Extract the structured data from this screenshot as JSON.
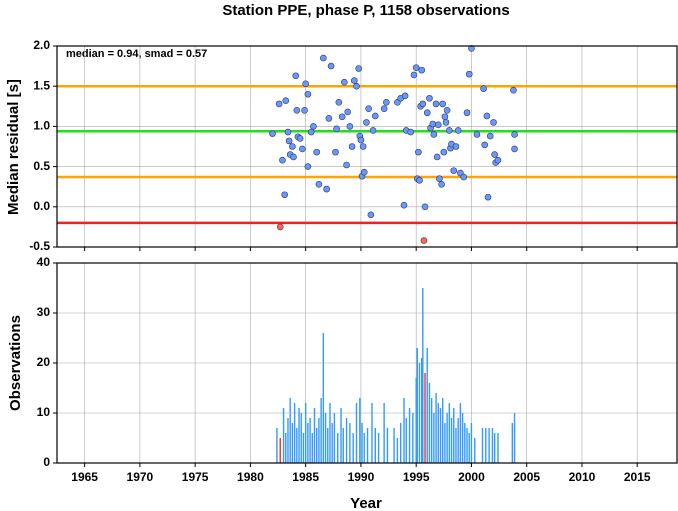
{
  "chart_data": [
    {
      "type": "scatter",
      "title": "Station PPE, phase P, 1158 observations",
      "ylabel": "Median residual [s]",
      "annotation": "median = 0.94, smad = 0.57",
      "xlim": [
        1962.5,
        2018.6
      ],
      "xticks": [
        1965,
        1970,
        1975,
        1980,
        1985,
        1990,
        1995,
        2000,
        2005,
        2010,
        2015
      ],
      "xtick_labels": false,
      "ylim": [
        -0.5,
        2.0
      ],
      "yticks": [
        -0.5,
        {
          "value": 0,
          "label": "0.0"
        },
        0.5,
        {
          "value": 1,
          "label": "1.0"
        },
        1.5,
        {
          "value": 2,
          "label": "2.0"
        }
      ],
      "grid": true,
      "hlines": [
        {
          "value": 1.5,
          "color": "#ffa500"
        },
        {
          "value": 0.94,
          "color": "#22dd22"
        },
        {
          "value": 0.37,
          "color": "#ffa500"
        },
        {
          "value": -0.2,
          "color": "#ee2222"
        }
      ],
      "series": [
        {
          "color": "#6699ff",
          "x": [
            1982.0,
            1982.6,
            1982.9,
            1983.1,
            1983.2,
            1983.4,
            1983.5,
            1983.6,
            1983.8,
            1983.9,
            1984.1,
            1984.2,
            1984.3,
            1984.5,
            1984.7,
            1984.9,
            1985.0,
            1985.2,
            1985.2,
            1985.5,
            1985.7,
            1986.0,
            1986.2,
            1986.6,
            1986.9,
            1987.1,
            1987.3,
            1987.7,
            1987.8,
            1988.0,
            1988.3,
            1988.5,
            1988.7,
            1988.8,
            1989.0,
            1989.2,
            1989.4,
            1989.6,
            1989.8,
            1989.9,
            1990.0,
            1990.1,
            1990.2,
            1990.3,
            1990.5,
            1990.7,
            1990.9,
            1991.1,
            1991.3,
            1992.1,
            1992.3,
            1993.3,
            1993.6,
            1993.9,
            1994.0,
            1994.1,
            1994.5,
            1994.8,
            1995.0,
            1995.1,
            1995.2,
            1995.3,
            1995.4,
            1995.5,
            1995.6,
            1995.8,
            1996.0,
            1996.2,
            1996.3,
            1996.5,
            1996.6,
            1996.8,
            1996.9,
            1997.0,
            1997.1,
            1997.3,
            1997.4,
            1997.5,
            1997.6,
            1997.7,
            1997.8,
            1998.0,
            1998.1,
            1998.2,
            1998.4,
            1998.6,
            1998.8,
            1999.0,
            1999.3,
            1999.6,
            1999.8,
            2000.0,
            2000.5,
            2001.1,
            2001.2,
            2001.4,
            2001.5,
            2001.7,
            2002.0,
            2002.1,
            2002.2,
            2002.4,
            2003.8,
            2003.9,
            2003.9
          ],
          "values": [
            0.91,
            1.28,
            0.58,
            0.15,
            1.32,
            0.93,
            0.82,
            0.65,
            0.75,
            0.62,
            1.63,
            1.2,
            0.87,
            0.85,
            0.72,
            1.2,
            1.53,
            1.4,
            0.5,
            0.93,
            1.0,
            0.68,
            0.28,
            1.85,
            0.22,
            1.1,
            1.75,
            0.68,
            0.97,
            1.3,
            1.12,
            1.55,
            0.52,
            1.18,
            1.0,
            0.75,
            1.57,
            1.5,
            1.72,
            0.88,
            0.83,
            0.38,
            0.75,
            0.43,
            1.05,
            1.22,
            -0.1,
            0.95,
            1.13,
            1.22,
            1.3,
            1.3,
            1.35,
            0.02,
            1.38,
            0.95,
            0.93,
            1.64,
            1.73,
            0.35,
            0.68,
            0.33,
            1.25,
            1.7,
            1.28,
            0.0,
            1.17,
            1.35,
            0.98,
            1.03,
            0.9,
            1.28,
            0.62,
            1.02,
            0.35,
            0.28,
            1.28,
            0.68,
            1.12,
            1.05,
            1.2,
            0.95,
            0.73,
            0.78,
            0.45,
            0.75,
            0.95,
            0.42,
            0.37,
            1.17,
            1.65,
            1.97,
            0.9,
            1.47,
            0.77,
            1.13,
            0.12,
            0.88,
            1.05,
            0.65,
            0.55,
            0.58,
            1.45,
            0.72,
            0.9
          ]
        },
        {
          "color": "#ff6655",
          "x": [
            1982.7,
            1995.7
          ],
          "values": [
            -0.25,
            -0.42
          ]
        }
      ]
    },
    {
      "type": "bar",
      "ylabel": "Observations",
      "xlabel": "Year",
      "xlim": [
        1962.5,
        2018.6
      ],
      "xticks": [
        1965,
        1970,
        1975,
        1980,
        1985,
        1990,
        1995,
        2000,
        2005,
        2010,
        2015
      ],
      "xtick_labels": true,
      "ylim": [
        0,
        40
      ],
      "yticks": [
        0,
        10,
        20,
        30,
        40
      ],
      "grid": true,
      "series": [
        {
          "color": "#3399ff",
          "x": [
            1982.4,
            1983.0,
            1983.2,
            1983.4,
            1983.6,
            1983.8,
            1984.0,
            1984.2,
            1984.4,
            1984.6,
            1984.8,
            1985.0,
            1985.2,
            1985.4,
            1985.6,
            1985.8,
            1986.0,
            1986.2,
            1986.4,
            1986.6,
            1986.8,
            1987.0,
            1987.2,
            1987.4,
            1987.6,
            1987.9,
            1988.2,
            1988.4,
            1988.7,
            1989.0,
            1989.3,
            1989.6,
            1989.9,
            1990.1,
            1990.3,
            1990.6,
            1991.0,
            1991.3,
            1991.6,
            1992.1,
            1992.4,
            1993.0,
            1993.3,
            1993.6,
            1993.9,
            1994.1,
            1994.4,
            1994.7,
            1995.0,
            1995.1,
            1995.3,
            1995.5,
            1995.6,
            1996.0,
            1996.2,
            1996.4,
            1996.6,
            1996.8,
            1997.0,
            1997.2,
            1997.4,
            1997.6,
            1997.8,
            1998.0,
            1998.2,
            1998.4,
            1998.6,
            1998.8,
            1999.0,
            1999.2,
            1999.4,
            1999.6,
            1999.8,
            2000.0,
            2000.3,
            2001.0,
            2001.3,
            2001.6,
            2001.9,
            2002.1,
            2002.4,
            2003.7,
            2003.9
          ],
          "values": [
            7,
            11,
            6,
            9,
            13,
            8,
            12,
            7,
            11,
            10,
            6,
            12,
            8,
            9,
            6,
            11,
            7,
            9,
            13,
            26,
            10,
            7,
            12,
            8,
            10,
            6,
            11,
            7,
            9,
            8,
            6,
            12,
            13,
            8,
            6,
            7,
            12,
            7,
            6,
            12,
            7,
            7,
            5,
            8,
            13,
            9,
            11,
            10,
            17,
            23,
            20,
            21,
            35,
            23,
            16,
            13,
            10,
            14,
            12,
            11,
            13,
            8,
            10,
            12,
            9,
            11,
            7,
            9,
            12,
            10,
            8,
            7,
            6,
            8,
            5,
            7,
            7,
            7,
            7,
            6,
            6,
            8,
            10
          ]
        },
        {
          "color": "#ee3333",
          "x": [
            1982.7,
            1995.8
          ],
          "values": [
            5,
            18
          ]
        }
      ]
    }
  ]
}
